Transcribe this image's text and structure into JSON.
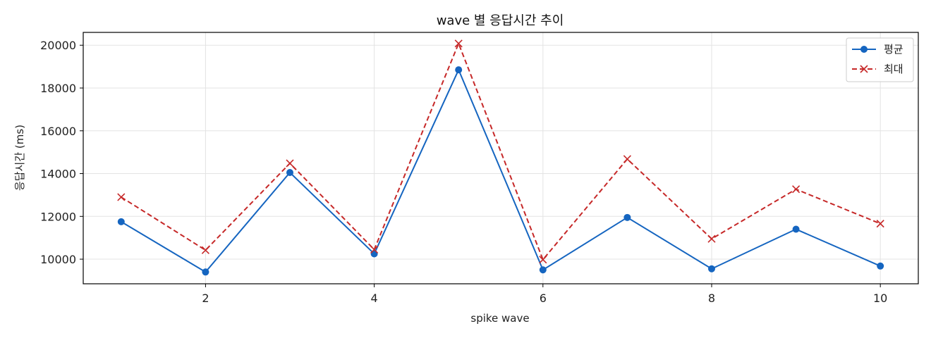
{
  "chart_data": {
    "type": "line",
    "title": "wave 별 응답시간 추이",
    "xlabel": "spike wave",
    "ylabel": "응답시간 (ms)",
    "x": [
      1,
      2,
      3,
      4,
      5,
      6,
      7,
      8,
      9,
      10
    ],
    "xlim": [
      0.55,
      10.45
    ],
    "ylim": [
      8850,
      20600
    ],
    "xticks": [
      2,
      4,
      6,
      8,
      10
    ],
    "yticks": [
      10000,
      12000,
      14000,
      16000,
      18000,
      20000
    ],
    "grid": true,
    "legend_position": "top-right",
    "series": [
      {
        "name": "평균",
        "values": [
          11750,
          9400,
          14050,
          10250,
          18850,
          9500,
          11950,
          9550,
          11400,
          9680
        ],
        "color": "#1565c0",
        "line_style": "solid",
        "marker": "circle"
      },
      {
        "name": "최대",
        "values": [
          12900,
          10420,
          14480,
          10450,
          20080,
          9980,
          14680,
          10950,
          13270,
          11660
        ],
        "color": "#c62828",
        "line_style": "dashed",
        "marker": "x"
      }
    ]
  }
}
